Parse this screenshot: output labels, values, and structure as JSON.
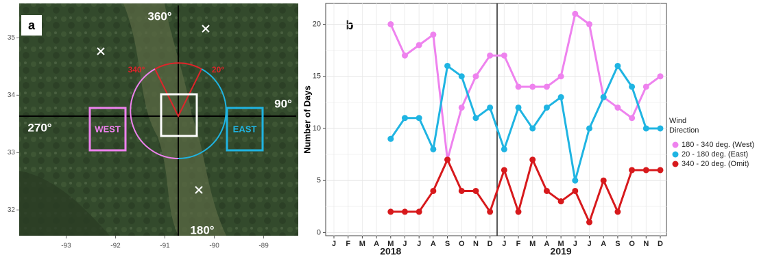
{
  "chart_data": [
    {
      "type": "map",
      "panel_label": "a",
      "xlim": [
        -93.95,
        -88.3
      ],
      "ylim": [
        31.55,
        35.6
      ],
      "xticks": [
        -93,
        -92,
        -91,
        -90,
        -89
      ],
      "yticks": [
        32,
        33,
        34,
        35
      ],
      "annotations": [
        "360°",
        "90°",
        "270°",
        "180°",
        "340°",
        "20°",
        "WEST",
        "EAST"
      ]
    },
    {
      "type": "line",
      "panel_label": "b",
      "y_label": "Number of Days",
      "categories": [
        "J",
        "F",
        "M",
        "A",
        "M",
        "J",
        "J",
        "A",
        "S",
        "O",
        "N",
        "D",
        "J",
        "F",
        "M",
        "A",
        "M",
        "J",
        "J",
        "A",
        "S",
        "O",
        "N",
        "D"
      ],
      "year_labels": [
        "2018",
        "2019"
      ],
      "ylim": [
        -0.3,
        22
      ],
      "yticks": [
        0,
        5,
        10,
        15,
        20
      ],
      "grid": true,
      "legend_title": "Wind Direction",
      "series": [
        {
          "name": "180 - 340 deg. (West)",
          "color": "#ee82ee",
          "values": [
            null,
            null,
            null,
            null,
            20,
            17,
            18,
            19,
            7,
            12,
            15,
            17,
            17,
            14,
            14,
            14,
            15,
            21,
            20,
            13,
            12,
            11,
            14,
            15
          ]
        },
        {
          "name": "20 - 180 deg. (East)",
          "color": "#1fb4e2",
          "values": [
            null,
            null,
            null,
            null,
            9,
            11,
            11,
            8,
            16,
            15,
            11,
            12,
            8,
            12,
            10,
            12,
            13,
            5,
            10,
            13,
            16,
            14,
            10,
            10
          ]
        },
        {
          "name": "340 - 20 deg. (Omit)",
          "color": "#d7191c",
          "values": [
            null,
            null,
            null,
            null,
            2,
            2,
            2,
            4,
            7,
            4,
            4,
            2,
            6,
            2,
            7,
            4,
            3,
            4,
            1,
            5,
            2,
            6,
            6,
            6
          ]
        }
      ]
    }
  ]
}
